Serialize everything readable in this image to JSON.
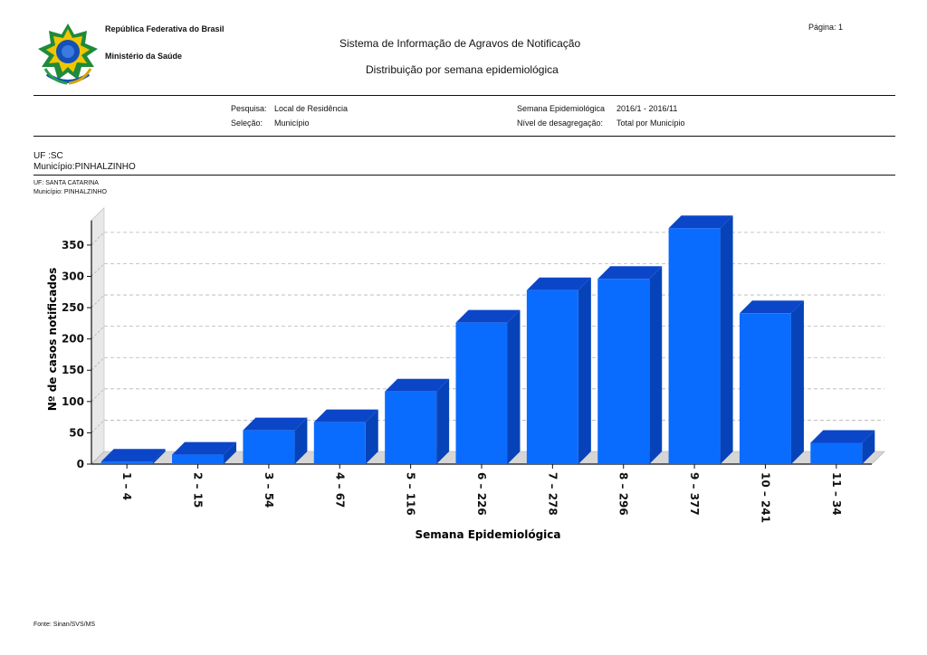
{
  "header": {
    "country": "República Federativa do Brasil",
    "ministry": "Ministério da Saúde",
    "system_title": "Sistema  de Informação de Agravos de Notificação",
    "report_title": "Distribuição por semana epidemiológica",
    "page_label": "Página: 1"
  },
  "filters": {
    "pesquisa_label": "Pesquisa:",
    "pesquisa_value": "Local de Residência",
    "selecao_label": "Seleção:",
    "selecao_value": "Município",
    "semana_label": "Semana Epidemiológica",
    "semana_value": "2016/1 - 2016/11",
    "nivel_label": "Nível de desagregação:",
    "nivel_value": "Total por Município"
  },
  "location": {
    "uf": "UF :SC",
    "municipio": "Município:PINHALZINHO",
    "uf_small": "UF: SANTA CATARINA",
    "municipio_small": "Município: PINHALZINHO"
  },
  "footer": {
    "source": "Fonte: Sinan/SVS/MS"
  },
  "colors": {
    "bar_front": "#0a6cff",
    "bar_top": "#0b46c9",
    "bar_side": "#0743b8",
    "floor": "#d6d6d6",
    "grid": "#b5b5b5"
  },
  "chart_data": {
    "type": "bar",
    "categories": [
      "1 – 4",
      "2 – 15",
      "3 – 54",
      "4 – 67",
      "5 – 116",
      "6 – 226",
      "7 – 278",
      "8 – 296",
      "9 – 377",
      "10 – 241",
      "11 – 34"
    ],
    "values": [
      4,
      15,
      54,
      67,
      116,
      226,
      278,
      296,
      377,
      241,
      34
    ],
    "xlabel": "Semana Epidemiológica",
    "ylabel": "Nº de casos notificados",
    "ylim": [
      0,
      375
    ],
    "yticks": [
      0,
      50,
      100,
      150,
      200,
      250,
      300,
      350
    ],
    "grid": true,
    "three_d": true
  }
}
